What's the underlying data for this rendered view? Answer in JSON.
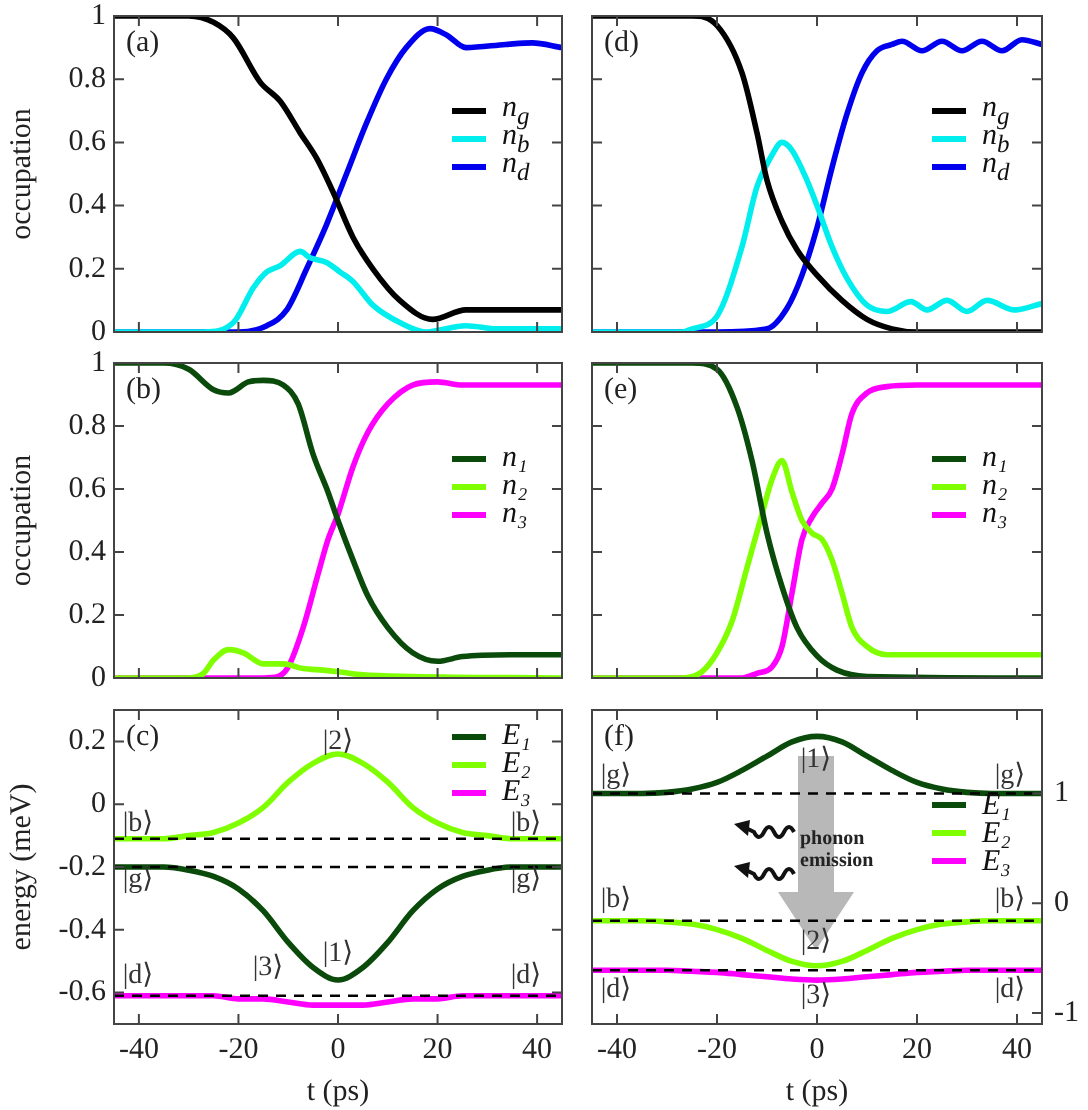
{
  "chart_data": [
    {
      "type": "line",
      "annotations": [
        "(a)"
      ],
      "xlim": [
        -45,
        45
      ],
      "xticks": [
        -40,
        -20,
        0,
        20,
        40
      ],
      "ylim": [
        0,
        1
      ],
      "yticks": [
        0,
        0.2,
        0.4,
        0.6,
        0.8,
        1
      ],
      "ylabel": "occupation",
      "tick_labels": "y",
      "legend": "right",
      "series": [
        {
          "name": "n$_{g}$",
          "color": "#000000",
          "x": [
            -45,
            -30,
            -25,
            -21,
            -15.6,
            -11.6,
            -7.6,
            -4.3,
            -0.9,
            3,
            7,
            12.4,
            19,
            25.7,
            32,
            38,
            45
          ],
          "values": [
            1,
            1,
            0.98,
            0.93,
            0.79,
            0.73,
            0.63,
            0.55,
            0.44,
            0.3,
            0.2,
            0.1,
            0.04,
            0.07,
            0.07,
            0.07,
            0.07
          ]
        },
        {
          "name": "n$_{b}$",
          "color": "#00eeee",
          "x": [
            -45,
            -27,
            -21,
            -17,
            -14.3,
            -11.6,
            -7.6,
            -5.6,
            -2.3,
            0.4,
            3,
            7,
            12.4,
            17.7,
            25.7,
            32,
            45
          ],
          "values": [
            0,
            0,
            0.03,
            0.14,
            0.19,
            0.21,
            0.255,
            0.235,
            0.22,
            0.19,
            0.16,
            0.085,
            0.03,
            0,
            0.02,
            0.01,
            0.01
          ]
        },
        {
          "name": "n$_{d}$",
          "color": "#0000ee",
          "x": [
            -45,
            -20,
            -14.3,
            -10.3,
            -6.3,
            -2.3,
            1.7,
            5.7,
            9.7,
            13.7,
            18.5,
            21.8,
            25.7,
            33.7,
            39,
            45
          ],
          "values": [
            0,
            0,
            0.02,
            0.07,
            0.2,
            0.34,
            0.5,
            0.66,
            0.8,
            0.9,
            0.96,
            0.94,
            0.9,
            0.91,
            0.915,
            0.9
          ]
        }
      ]
    },
    {
      "type": "line",
      "annotations": [
        "(d)"
      ],
      "xlim": [
        -45,
        45
      ],
      "xticks": [
        -40,
        -20,
        0,
        20,
        40
      ],
      "ylim": [
        0,
        1
      ],
      "yticks": [
        0,
        0.2,
        0.4,
        0.6,
        0.8,
        1
      ],
      "tick_labels": false,
      "legend": "right",
      "series": [
        {
          "name": "n$_{g}$",
          "color": "#000000",
          "x": [
            -45,
            -25,
            -20,
            -15,
            -12,
            -10,
            -7,
            -4,
            0,
            5,
            10,
            15,
            20,
            45
          ],
          "values": [
            1,
            1,
            0.97,
            0.82,
            0.63,
            0.48,
            0.35,
            0.26,
            0.18,
            0.1,
            0.04,
            0.01,
            0,
            0
          ]
        },
        {
          "name": "n$_{b}$",
          "color": "#00eeee",
          "x": [
            -45,
            -27,
            -25,
            -20,
            -15,
            -12,
            -9,
            -7,
            -5,
            -2,
            0,
            3,
            6,
            10,
            14,
            18.8,
            22,
            26,
            30,
            34,
            39.5,
            45
          ],
          "values": [
            0,
            0,
            0.01,
            0.05,
            0.27,
            0.46,
            0.56,
            0.6,
            0.575,
            0.48,
            0.4,
            0.27,
            0.17,
            0.085,
            0.065,
            0.096,
            0.07,
            0.1,
            0.065,
            0.1,
            0.07,
            0.09
          ]
        },
        {
          "name": "n$_{d}$",
          "color": "#0000ee",
          "x": [
            -45,
            -20,
            -10,
            -6,
            -3,
            0,
            3,
            6,
            9,
            12,
            15,
            17,
            21,
            25,
            29,
            33,
            37,
            41,
            45
          ],
          "values": [
            0,
            0,
            0.01,
            0.075,
            0.18,
            0.33,
            0.52,
            0.69,
            0.82,
            0.89,
            0.91,
            0.92,
            0.89,
            0.92,
            0.89,
            0.92,
            0.89,
            0.925,
            0.91
          ]
        }
      ]
    },
    {
      "type": "line",
      "annotations": [
        "(b)"
      ],
      "xlim": [
        -45,
        45
      ],
      "xticks": [
        -40,
        -20,
        0,
        20,
        40
      ],
      "ylim": [
        0,
        1
      ],
      "yticks": [
        0,
        0.2,
        0.4,
        0.6,
        0.8,
        1
      ],
      "ylabel": "occupation",
      "tick_labels": "y",
      "legend": "right",
      "series": [
        {
          "name": "n₁",
          "color": "#0a4a0a",
          "x": [
            -45,
            -35,
            -30,
            -25,
            -22,
            -18,
            -15,
            -11,
            -8,
            -5,
            -2,
            0,
            3,
            6,
            10,
            15,
            20,
            25,
            35,
            45
          ],
          "values": [
            1,
            1,
            0.98,
            0.915,
            0.905,
            0.94,
            0.945,
            0.93,
            0.87,
            0.71,
            0.59,
            0.5,
            0.375,
            0.26,
            0.16,
            0.08,
            0.053,
            0.068,
            0.074,
            0.074
          ]
        },
        {
          "name": "n₂",
          "color": "#80ff00",
          "x": [
            -45,
            -30,
            -27,
            -25,
            -22,
            -19,
            -15,
            -11,
            -7,
            -3,
            0,
            5,
            15,
            45
          ],
          "values": [
            0,
            0,
            0.015,
            0.057,
            0.09,
            0.08,
            0.045,
            0.045,
            0.03,
            0.025,
            0.02,
            0.01,
            0.005,
            0
          ]
        },
        {
          "name": "n₃",
          "color": "#ff00ff",
          "x": [
            -45,
            -15,
            -12,
            -10,
            -7,
            -4,
            -2,
            0,
            3,
            6,
            10,
            15,
            20,
            25,
            45
          ],
          "values": [
            0,
            0,
            0.005,
            0.035,
            0.16,
            0.33,
            0.44,
            0.52,
            0.67,
            0.78,
            0.87,
            0.93,
            0.94,
            0.93,
            0.93
          ]
        }
      ]
    },
    {
      "type": "line",
      "annotations": [
        "(e)"
      ],
      "xlim": [
        -45,
        45
      ],
      "xticks": [
        -40,
        -20,
        0,
        20,
        40
      ],
      "ylim": [
        0,
        1
      ],
      "yticks": [
        0,
        0.2,
        0.4,
        0.6,
        0.8,
        1
      ],
      "tick_labels": false,
      "legend": "right",
      "series": [
        {
          "name": "n₁",
          "color": "#0a4a0a",
          "x": [
            -45,
            -25,
            -20,
            -16,
            -13,
            -10,
            -7,
            -4,
            0,
            4,
            10,
            45
          ],
          "values": [
            1,
            1,
            0.98,
            0.86,
            0.69,
            0.46,
            0.29,
            0.16,
            0.07,
            0.025,
            0.005,
            0
          ]
        },
        {
          "name": "n₂",
          "color": "#80ff00",
          "x": [
            -45,
            -27,
            -23,
            -20,
            -17,
            -14,
            -11,
            -9,
            -7,
            -5,
            -3,
            -1,
            1,
            3,
            5,
            7,
            10,
            14,
            45
          ],
          "values": [
            0,
            0,
            0.02,
            0.08,
            0.18,
            0.35,
            0.52,
            0.63,
            0.69,
            0.59,
            0.5,
            0.46,
            0.44,
            0.375,
            0.27,
            0.16,
            0.1,
            0.074,
            0.074
          ]
        },
        {
          "name": "n₃",
          "color": "#ff00ff",
          "x": [
            -45,
            -15,
            -12,
            -9,
            -7,
            -5,
            -3,
            -1,
            1,
            3,
            5,
            7,
            10,
            14,
            20,
            45
          ],
          "values": [
            0,
            0,
            0.015,
            0.035,
            0.1,
            0.27,
            0.44,
            0.51,
            0.555,
            0.6,
            0.71,
            0.84,
            0.905,
            0.925,
            0.93,
            0.93
          ]
        }
      ]
    },
    {
      "type": "line",
      "xlim": [
        -45,
        45
      ],
      "xticks": [
        -40,
        -20,
        0,
        20,
        40
      ],
      "ylim": [
        -0.7,
        0.3
      ],
      "yticks": [
        -0.6,
        -0.4,
        -0.2,
        0,
        0.2
      ],
      "xlabel": "t (ps)",
      "ylabel": "energy (meV)",
      "legend": "top right",
      "x": [
        -45,
        -35,
        -30,
        -25,
        -20,
        -15,
        -10,
        -5,
        0,
        5,
        10,
        15,
        20,
        25,
        30,
        35,
        45
      ],
      "series": [
        {
          "name": "E₁",
          "color": "#0a4a0a",
          "values": [
            -0.2,
            -0.2,
            -0.21,
            -0.23,
            -0.27,
            -0.34,
            -0.44,
            -0.52,
            -0.56,
            -0.52,
            -0.44,
            -0.34,
            -0.27,
            -0.23,
            -0.21,
            -0.2,
            -0.2
          ]
        },
        {
          "name": "E₂",
          "color": "#80ff00",
          "values": [
            -0.11,
            -0.11,
            -0.1,
            -0.09,
            -0.06,
            -0.01,
            0.07,
            0.13,
            0.16,
            0.13,
            0.07,
            -0.01,
            -0.06,
            -0.09,
            -0.1,
            -0.11,
            -0.11
          ]
        },
        {
          "name": "E₃",
          "color": "#ff00ff",
          "values": [
            -0.61,
            -0.61,
            -0.61,
            -0.61,
            -0.62,
            -0.62,
            -0.63,
            -0.64,
            -0.64,
            -0.64,
            -0.63,
            -0.62,
            -0.62,
            -0.61,
            -0.61,
            -0.61,
            -0.61
          ]
        }
      ],
      "ref_lines": [
        {
          "axis": "y",
          "value": -0.11,
          "line_style": "dashed"
        },
        {
          "axis": "y",
          "value": -0.2,
          "line_style": "dashed"
        },
        {
          "axis": "y",
          "value": -0.61,
          "line_style": "dashed"
        }
      ],
      "annotations": [
        "(c)",
        "|b⟩",
        "|b⟩",
        "|g⟩",
        "|g⟩",
        "|d⟩",
        "|d⟩",
        "|2⟩",
        "|1⟩",
        "|3⟩"
      ]
    },
    {
      "type": "line",
      "xlim": [
        -45,
        45
      ],
      "xticks": [
        -40,
        -20,
        0,
        20,
        40
      ],
      "y2lim": [
        -1.1,
        1.76
      ],
      "y2ticks": [
        -1,
        0,
        1
      ],
      "xlabel": "t (ps)",
      "legend": "right",
      "x": [
        -45,
        -35,
        -30,
        -25,
        -20,
        -15,
        -10,
        -5,
        0,
        5,
        10,
        15,
        20,
        25,
        30,
        35,
        45
      ],
      "series": [
        {
          "name": "E₁",
          "color": "#0a4a0a",
          "axis": "y2",
          "values": [
            1,
            1,
            1.01,
            1.04,
            1.1,
            1.21,
            1.34,
            1.47,
            1.52,
            1.47,
            1.34,
            1.21,
            1.1,
            1.04,
            1.01,
            1,
            1
          ]
        },
        {
          "name": "E₂",
          "color": "#80ff00",
          "axis": "y2",
          "values": [
            -0.16,
            -0.16,
            -0.17,
            -0.19,
            -0.24,
            -0.32,
            -0.43,
            -0.53,
            -0.57,
            -0.53,
            -0.43,
            -0.32,
            -0.24,
            -0.19,
            -0.17,
            -0.16,
            -0.16
          ]
        },
        {
          "name": "E₃",
          "color": "#ff00ff",
          "axis": "y2",
          "values": [
            -0.61,
            -0.61,
            -0.61,
            -0.62,
            -0.63,
            -0.65,
            -0.67,
            -0.69,
            -0.7,
            -0.69,
            -0.67,
            -0.65,
            -0.63,
            -0.62,
            -0.61,
            -0.61,
            -0.61
          ]
        }
      ],
      "ref_lines": [
        {
          "axis": "y2",
          "value": 1,
          "line_style": "dashed"
        },
        {
          "axis": "y2",
          "value": -0.16,
          "line_style": "dashed"
        },
        {
          "axis": "y2",
          "value": -0.61,
          "line_style": "dashed"
        }
      ],
      "annotations": [
        "(f)",
        "phonon emission",
        "|g⟩",
        "|g⟩",
        "|b⟩",
        "|b⟩",
        "|d⟩",
        "|d⟩",
        "|1⟩",
        "|2⟩",
        "|3⟩"
      ]
    }
  ]
}
